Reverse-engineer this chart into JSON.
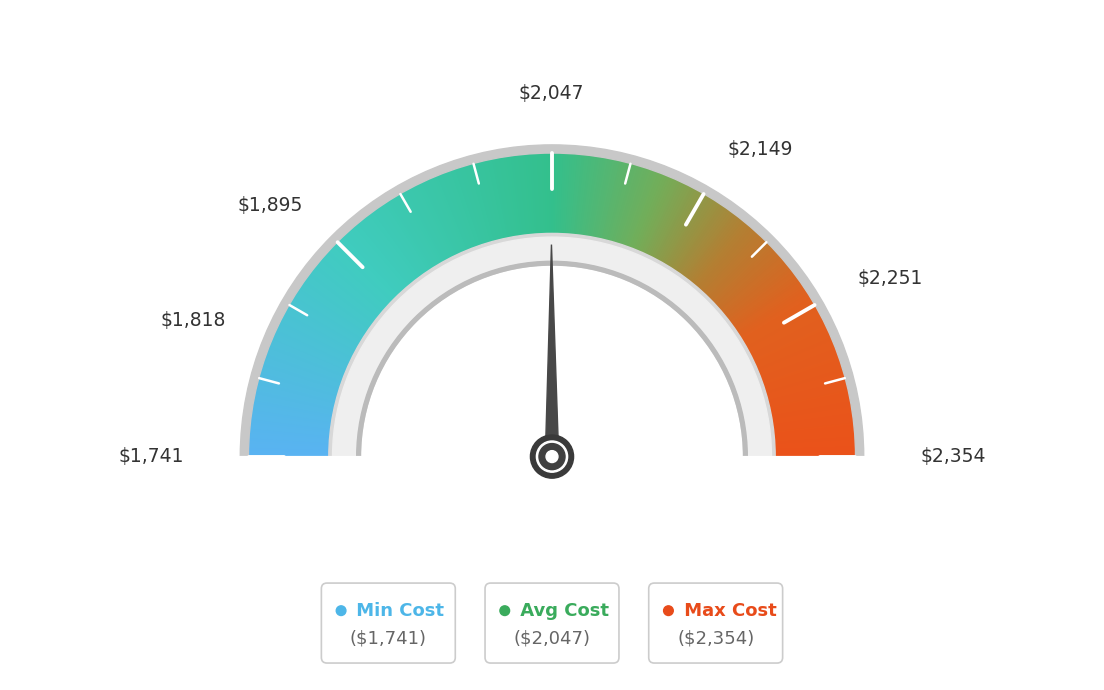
{
  "min_val": 1741,
  "max_val": 2354,
  "avg_val": 2047,
  "tick_labels": [
    {
      "val": 1741,
      "text": "$1,741",
      "ha": "right"
    },
    {
      "val": 1818,
      "text": "$1,818",
      "ha": "right"
    },
    {
      "val": 1895,
      "text": "$1,895",
      "ha": "right"
    },
    {
      "val": 2047,
      "text": "$2,047",
      "ha": "center"
    },
    {
      "val": 2149,
      "text": "$2,149",
      "ha": "left"
    },
    {
      "val": 2251,
      "text": "$2,251",
      "ha": "left"
    },
    {
      "val": 2354,
      "text": "$2,354",
      "ha": "left"
    }
  ],
  "gradient_stops": [
    [
      0.0,
      [
        0.35,
        0.7,
        0.95
      ]
    ],
    [
      0.25,
      [
        0.25,
        0.8,
        0.75
      ]
    ],
    [
      0.5,
      [
        0.2,
        0.75,
        0.55
      ]
    ],
    [
      0.62,
      [
        0.45,
        0.68,
        0.35
      ]
    ],
    [
      0.72,
      [
        0.7,
        0.5,
        0.2
      ]
    ],
    [
      0.82,
      [
        0.88,
        0.38,
        0.12
      ]
    ],
    [
      1.0,
      [
        0.92,
        0.32,
        0.1
      ]
    ]
  ],
  "legend": [
    {
      "label": "Min Cost",
      "sublabel": "($1,741)",
      "color": "#4db6e8"
    },
    {
      "label": "Avg Cost",
      "sublabel": "($2,047)",
      "color": "#3aab5c"
    },
    {
      "label": "Max Cost",
      "sublabel": "($2,354)",
      "color": "#e84b1a"
    }
  ],
  "needle_color": "#484848",
  "background_color": "#ffffff",
  "outer_r": 0.82,
  "inner_r": 0.52,
  "trim_r": 0.6,
  "outer_border_color": "#cccccc",
  "trim_color_outer": "#d0d0d0",
  "trim_color_inner": "#e8e8e8"
}
